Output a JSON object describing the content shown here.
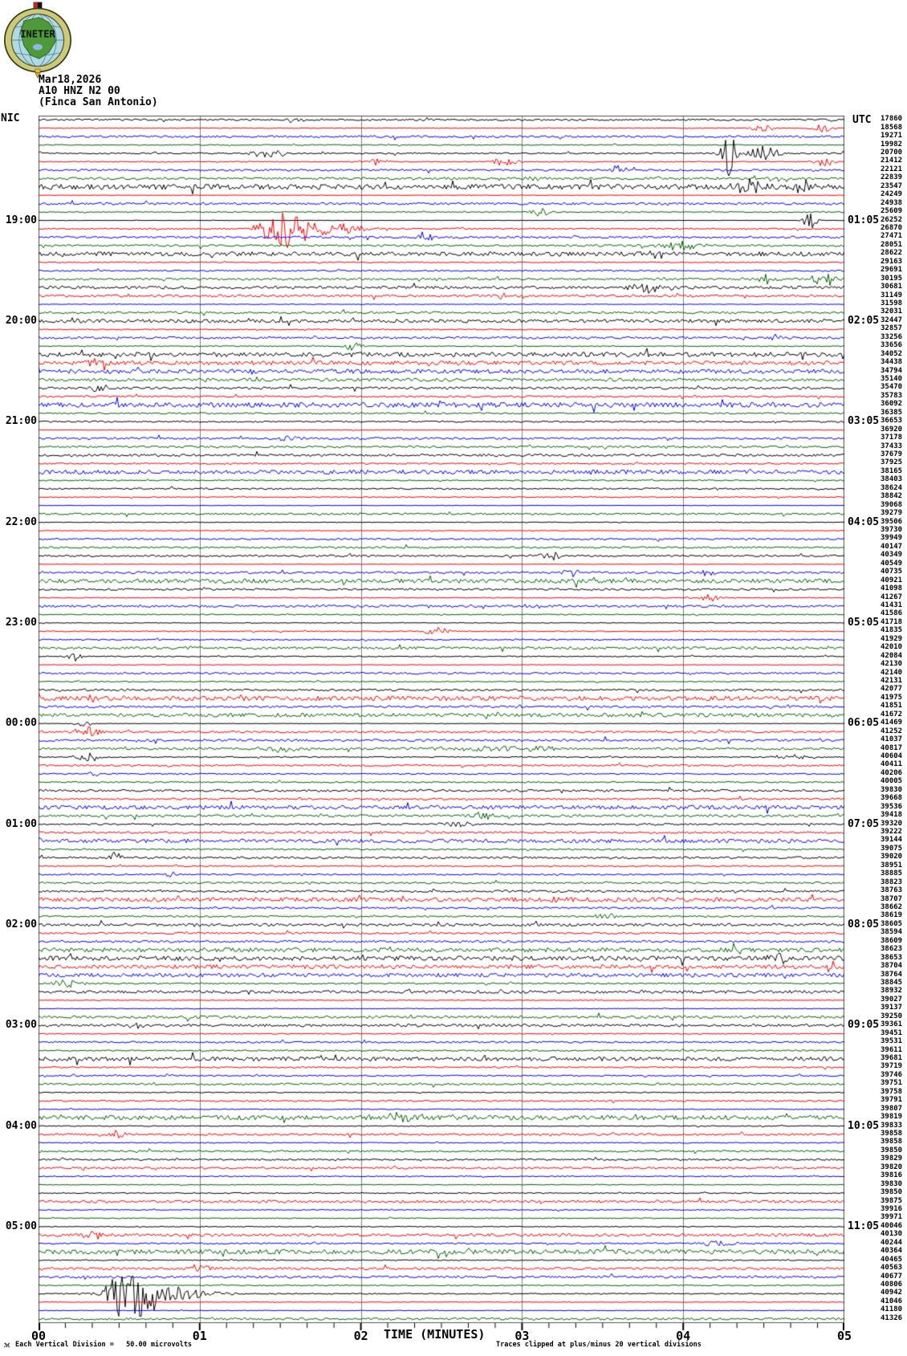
{
  "logo": {
    "text": "INETER"
  },
  "header": {
    "date": "Mar18,2026",
    "station": "A10 HNZ N2 00",
    "location": "(Finca San Antonio)"
  },
  "axes": {
    "left_corner_label": "NIC",
    "right_corner_label": "UTC",
    "x_tick_labels": [
      "00",
      "01",
      "02",
      "03",
      "04",
      "05"
    ],
    "x_title": "TIME (MINUTES)"
  },
  "footer": {
    "corner_mark": "ℳ",
    "scale_note": "Each Vertical Division =   50.00 microvolts",
    "clip_note": "Traces clipped at plus/minus 20 vertical divisions"
  },
  "chart_data": {
    "type": "line",
    "subtype": "helicorder-seismogram",
    "title": "A10 HNZ N2 00 (Finca San Antonio) Mar18,2026",
    "xlabel": "TIME (MINUTES)",
    "x_range_minutes": [
      0,
      5
    ],
    "minutes_per_row": 5,
    "rows": 144,
    "grid_minutes": [
      1,
      2,
      3,
      4
    ],
    "trace_colors": [
      "#000000",
      "#ff0000",
      "#0000ff",
      "#006400"
    ],
    "grid_color": "#808080",
    "border_color": "#555555",
    "hour_rows": [
      13,
      25,
      37,
      49,
      61,
      73,
      85,
      97,
      109,
      121,
      133
    ],
    "left_times": [
      "19:00",
      "20:00",
      "21:00",
      "22:00",
      "23:00",
      "00:00",
      "01:00",
      "02:00",
      "03:00",
      "04:00",
      "05:00"
    ],
    "right_times": [
      "01:05",
      "02:05",
      "03:05",
      "04:05",
      "05:05",
      "06:05",
      "07:05",
      "08:05",
      "09:05",
      "10:05",
      "11:05"
    ],
    "row_values": [
      17860,
      18568,
      19271,
      19982,
      20700,
      21412,
      22121,
      22839,
      23547,
      24249,
      24938,
      25609,
      26252,
      26870,
      27471,
      28051,
      28622,
      29163,
      29691,
      30195,
      30681,
      31149,
      31598,
      32031,
      32447,
      32857,
      33256,
      33656,
      34052,
      34438,
      34794,
      35140,
      35470,
      35783,
      36092,
      36385,
      36653,
      36920,
      37178,
      37433,
      37679,
      37925,
      38165,
      38403,
      38624,
      38842,
      39068,
      39279,
      39506,
      39730,
      39949,
      40147,
      40349,
      40549,
      40735,
      40921,
      41098,
      41267,
      41431,
      41586,
      41718,
      41835,
      41929,
      42010,
      42084,
      42130,
      42140,
      42131,
      42077,
      41975,
      41851,
      41672,
      41469,
      41252,
      41037,
      40817,
      40604,
      40411,
      40206,
      40005,
      39830,
      39668,
      39536,
      39418,
      39320,
      39222,
      39144,
      39075,
      39020,
      38951,
      38885,
      38823,
      38763,
      38707,
      38662,
      38619,
      38605,
      38594,
      38609,
      38623,
      38653,
      38704,
      38764,
      38845,
      38932,
      39027,
      39137,
      39250,
      39361,
      39451,
      39531,
      39611,
      39681,
      39719,
      39746,
      39751,
      39758,
      39791,
      39807,
      39819,
      39833,
      39858,
      39858,
      39850,
      39829,
      39820,
      39816,
      39830,
      39850,
      39875,
      39916,
      39971,
      40046,
      40130,
      40244,
      40364,
      40465,
      40563,
      40677,
      40806,
      40942,
      41046,
      41180,
      41326
    ],
    "events": [
      {
        "row": 1,
        "m": 1.6,
        "a": 4,
        "w": 0.06
      },
      {
        "row": 2,
        "m": 4.49,
        "a": 5,
        "w": 0.05
      },
      {
        "row": 2,
        "m": 4.86,
        "a": 7,
        "w": 0.04
      },
      {
        "row": 5,
        "m": 1.4,
        "a": 5,
        "w": 0.08
      },
      {
        "row": 5,
        "m": 4.28,
        "a": 34,
        "w": 0.03
      },
      {
        "row": 5,
        "m": 4.5,
        "a": 9,
        "w": 0.07
      },
      {
        "row": 6,
        "m": 2.1,
        "a": 5,
        "w": 0.05
      },
      {
        "row": 6,
        "m": 2.89,
        "a": 6,
        "w": 0.06
      },
      {
        "row": 6,
        "m": 4.87,
        "a": 6,
        "w": 0.05
      },
      {
        "row": 7,
        "m": 3.6,
        "a": 7,
        "w": 0.04
      },
      {
        "row": 8,
        "m": 3.07,
        "a": 5,
        "w": 0.03
      },
      {
        "row": 9,
        "m": 4.42,
        "a": 10,
        "w": 0.07
      },
      {
        "row": 9,
        "m": 4.76,
        "a": 9,
        "w": 0.05
      },
      {
        "row": 12,
        "m": 3.12,
        "a": 6,
        "w": 0.05
      },
      {
        "row": 13,
        "m": 4.79,
        "a": 12,
        "w": 0.03
      },
      {
        "row": 14,
        "m": 1.54,
        "a": 30,
        "w": 0.1
      },
      {
        "row": 14,
        "m": 1.8,
        "a": 7,
        "w": 0.18
      },
      {
        "row": 15,
        "m": 2.4,
        "a": 7,
        "w": 0.03
      },
      {
        "row": 16,
        "m": 3.99,
        "a": 6,
        "w": 0.09
      },
      {
        "row": 17,
        "m": 3.82,
        "a": 5,
        "w": 0.07
      },
      {
        "row": 20,
        "m": 4.5,
        "a": 7,
        "w": 0.06
      },
      {
        "row": 20,
        "m": 4.88,
        "a": 11,
        "w": 0.05
      },
      {
        "row": 21,
        "m": 3.79,
        "a": 6,
        "w": 0.09
      },
      {
        "row": 25,
        "m": 0.25,
        "a": 4,
        "w": 0.05
      },
      {
        "row": 28,
        "m": 1.95,
        "a": 6,
        "w": 0.04
      },
      {
        "row": 30,
        "m": 0.35,
        "a": 5,
        "w": 0.05
      },
      {
        "row": 33,
        "m": 0.36,
        "a": 6,
        "w": 0.03
      },
      {
        "row": 39,
        "m": 1.55,
        "a": 5,
        "w": 0.04
      },
      {
        "row": 53,
        "m": 3.18,
        "a": 6,
        "w": 0.05
      },
      {
        "row": 55,
        "m": 3.3,
        "a": 5,
        "w": 0.05
      },
      {
        "row": 55,
        "m": 4.14,
        "a": 5,
        "w": 0.04
      },
      {
        "row": 58,
        "m": 4.17,
        "a": 6,
        "w": 0.04
      },
      {
        "row": 62,
        "m": 2.47,
        "a": 5,
        "w": 0.06
      },
      {
        "row": 65,
        "m": 0.23,
        "a": 6,
        "w": 0.03
      },
      {
        "row": 73,
        "m": 0.28,
        "a": 4,
        "w": 0.04
      },
      {
        "row": 74,
        "m": 0.31,
        "a": 7,
        "w": 0.06
      },
      {
        "row": 76,
        "m": 1.5,
        "a": 4,
        "w": 0.1
      },
      {
        "row": 76,
        "m": 2.9,
        "a": 4,
        "w": 0.3
      },
      {
        "row": 77,
        "m": 0.31,
        "a": 6,
        "w": 0.05
      },
      {
        "row": 77,
        "m": 4.7,
        "a": 5,
        "w": 0.08
      },
      {
        "row": 79,
        "m": 0.34,
        "a": 4,
        "w": 0.02
      },
      {
        "row": 84,
        "m": 2.75,
        "a": 6,
        "w": 0.06
      },
      {
        "row": 85,
        "m": 2.6,
        "a": 5,
        "w": 0.07
      },
      {
        "row": 89,
        "m": 0.48,
        "a": 8,
        "w": 0.025
      },
      {
        "row": 91,
        "m": 0.83,
        "a": 5,
        "w": 0.025
      },
      {
        "row": 94,
        "m": 3.22,
        "a": 6,
        "w": 0.04
      },
      {
        "row": 96,
        "m": 3.52,
        "a": 5,
        "w": 0.05
      },
      {
        "row": 101,
        "m": 4.6,
        "a": 7,
        "w": 0.05
      },
      {
        "row": 104,
        "m": 0.18,
        "a": 5,
        "w": 0.07
      },
      {
        "row": 109,
        "m": 0.61,
        "a": 4,
        "w": 0.05
      },
      {
        "row": 120,
        "m": 2.25,
        "a": 6,
        "w": 0.12
      },
      {
        "row": 122,
        "m": 0.5,
        "a": 5,
        "w": 0.05
      },
      {
        "row": 134,
        "m": 0.35,
        "a": 5,
        "w": 0.06
      },
      {
        "row": 135,
        "m": 4.2,
        "a": 5,
        "w": 0.08
      },
      {
        "row": 138,
        "m": 1.0,
        "a": 5,
        "w": 0.05
      },
      {
        "row": 141,
        "m": 0.57,
        "a": 46,
        "w": 0.09
      },
      {
        "row": 141,
        "m": 0.75,
        "a": 10,
        "w": 0.22
      },
      {
        "row": 141,
        "m": 0.45,
        "a": 8,
        "w": 0.06
      }
    ]
  }
}
